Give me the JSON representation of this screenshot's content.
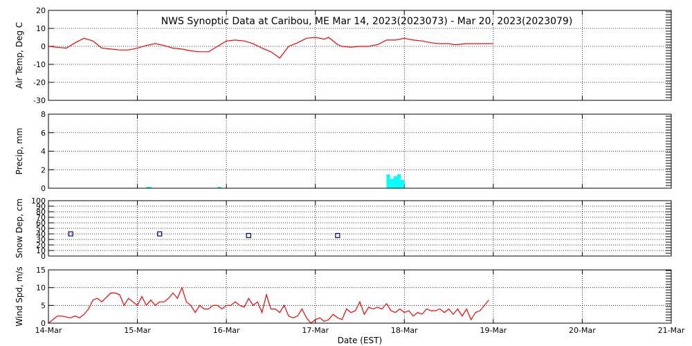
{
  "chart_data": {
    "type": "line",
    "title": "NWS Synoptic Data at Caribou, ME   Mar 14, 2023(2023073) - Mar 20, 2023(2023079)",
    "xlabel": "Date (EST)",
    "x_tick_labels": [
      "14-Mar",
      "15-Mar",
      "16-Mar",
      "17-Mar",
      "18-Mar",
      "19-Mar",
      "20-Mar",
      "21-Mar"
    ],
    "xlim_days": [
      0,
      7
    ],
    "colors": {
      "line": "#ff0000",
      "bar": "#00ffff",
      "marker": "#000080",
      "axis": "#000000"
    },
    "panels": [
      {
        "id": "air-temp",
        "ylabel": "Air Temp, Deg C",
        "ylim": [
          -30,
          20
        ],
        "yticks": [
          -30,
          -20,
          -10,
          0,
          10,
          20
        ],
        "type": "line",
        "x": [
          0.0,
          0.1,
          0.2,
          0.3,
          0.4,
          0.5,
          0.6,
          0.7,
          0.8,
          0.9,
          1.0,
          1.1,
          1.2,
          1.3,
          1.4,
          1.5,
          1.6,
          1.7,
          1.8,
          1.9,
          2.0,
          2.1,
          2.2,
          2.3,
          2.4,
          2.5,
          2.6,
          2.7,
          2.8,
          2.9,
          3.0,
          3.1,
          3.15,
          3.25,
          3.3,
          3.4,
          3.5,
          3.6,
          3.65,
          3.7,
          3.8,
          3.9,
          4.0,
          4.1,
          4.2,
          4.3,
          4.4,
          4.5,
          4.55,
          4.6,
          4.7,
          4.8,
          4.9,
          5.0
        ],
        "values": [
          0,
          -0.5,
          -1,
          2,
          4.5,
          3,
          -1,
          -1.5,
          -2,
          -2,
          -1,
          0.5,
          1.5,
          0.5,
          -1,
          -1.5,
          -2.5,
          -3,
          -3,
          0,
          3,
          3.5,
          3,
          1.5,
          -1,
          -3,
          -6.5,
          0,
          2,
          4.5,
          5,
          4,
          5,
          1,
          0,
          -0.5,
          0,
          0,
          0.5,
          1,
          3.5,
          3.5,
          4.5,
          3.5,
          3,
          2,
          1.5,
          1.5,
          1,
          1,
          1.5,
          1.5,
          1.5,
          1.5
        ]
      },
      {
        "id": "precip",
        "ylabel": "Precip, mm",
        "ylim": [
          0,
          8
        ],
        "yticks": [
          0,
          2,
          4,
          6,
          8
        ],
        "type": "bar",
        "bar_width_days": 0.04,
        "x": [
          1.1,
          1.12,
          1.9,
          3.8,
          3.84,
          3.88,
          3.92,
          3.96
        ],
        "values": [
          0.15,
          0.15,
          0.15,
          1.5,
          1.0,
          1.3,
          1.5,
          0.9
        ]
      },
      {
        "id": "snow-depth",
        "ylabel": "Snow Dep, cm",
        "ylim": [
          0,
          100
        ],
        "yticks": [
          0,
          10,
          20,
          30,
          40,
          50,
          60,
          70,
          80,
          90,
          100
        ],
        "type": "scatter",
        "x": [
          0.25,
          1.25,
          2.25,
          3.25
        ],
        "values": [
          40,
          40,
          37,
          37
        ]
      },
      {
        "id": "wind-speed",
        "ylabel": "Wind Spd, m/s",
        "ylim": [
          0,
          15
        ],
        "yticks": [
          0,
          5,
          10,
          15
        ],
        "type": "line",
        "x": [
          0.0,
          0.1,
          0.15,
          0.25,
          0.3,
          0.35,
          0.4,
          0.45,
          0.5,
          0.55,
          0.6,
          0.7,
          0.75,
          0.8,
          0.85,
          0.9,
          1.0,
          1.05,
          1.1,
          1.15,
          1.2,
          1.25,
          1.3,
          1.35,
          1.4,
          1.45,
          1.5,
          1.55,
          1.6,
          1.65,
          1.7,
          1.75,
          1.8,
          1.85,
          1.9,
          1.95,
          2.0,
          2.05,
          2.1,
          2.15,
          2.2,
          2.25,
          2.3,
          2.35,
          2.4,
          2.45,
          2.5,
          2.55,
          2.6,
          2.65,
          2.7,
          2.75,
          2.8,
          2.85,
          2.9,
          2.95,
          3.0,
          3.05,
          3.1,
          3.15,
          3.2,
          3.25,
          3.3,
          3.35,
          3.4,
          3.45,
          3.5,
          3.55,
          3.6,
          3.65,
          3.7,
          3.75,
          3.8,
          3.85,
          3.9,
          3.95,
          4.0,
          4.05,
          4.1,
          4.15,
          4.2,
          4.25,
          4.3,
          4.35,
          4.4,
          4.45,
          4.5,
          4.55,
          4.6,
          4.65,
          4.7,
          4.75,
          4.8,
          4.85,
          4.9,
          4.95
        ],
        "values": [
          0,
          2,
          2,
          1.5,
          2,
          1.5,
          2.5,
          4,
          6.5,
          7,
          6,
          8.5,
          8.5,
          8,
          5,
          7,
          5,
          7.5,
          5,
          6.5,
          5,
          6,
          6,
          7,
          8.5,
          7,
          10,
          6,
          5,
          3,
          5,
          4,
          4,
          5,
          5,
          4,
          5,
          5,
          6,
          5,
          4.5,
          7,
          5,
          6,
          3,
          8,
          4,
          4,
          3,
          5,
          2,
          1.5,
          2,
          4,
          1.5,
          0,
          1,
          1.5,
          0.5,
          1,
          2.5,
          1.5,
          1,
          4,
          3,
          3.5,
          6,
          2.5,
          4.5,
          4,
          4.5,
          4,
          5.5,
          3.5,
          3,
          4,
          3,
          3.5,
          2,
          3,
          2.5,
          4,
          3.5,
          3.5,
          4,
          3,
          4,
          2.5,
          4,
          2,
          4,
          1,
          3,
          3.5,
          5,
          6.5
        ]
      }
    ]
  }
}
